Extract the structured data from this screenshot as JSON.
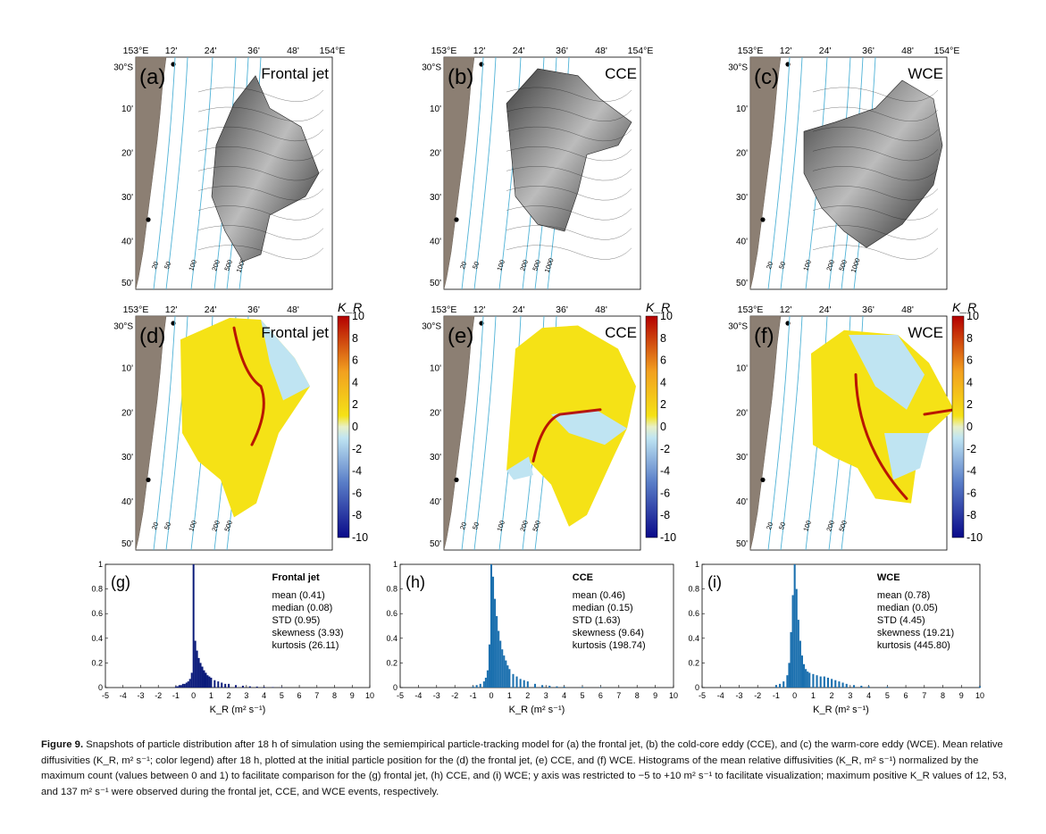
{
  "figure": {
    "number_label": "Figure 9.",
    "caption_text": "Snapshots of particle distribution after 18 h of simulation using the semiempirical particle-tracking model for (a) the frontal jet, (b) the cold-core eddy (CCE), and (c) the warm-core eddy (WCE). Mean relative diffusivities (K_R, m² s⁻¹; color legend) after 18 h, plotted at the initial particle position for the (d) the frontal jet, (e) CCE, and (f) WCE. Histograms of the mean relative diffusivities (K_R, m² s⁻¹) normalized by the maximum count (values between 0 and 1) to facilitate comparison for the (g) frontal jet, (h) CCE, and (i) WCE; y axis was restricted to −5 to +10 m² s⁻¹ to facilitate visualization; maximum positive K_R values of 12, 53, and 137 m² s⁻¹ were observed during the frontal jet, CCE, and WCE events, respectively."
  },
  "maps": {
    "lon_ticks": [
      "153°E",
      "12'",
      "24'",
      "36'",
      "48'",
      "154°E"
    ],
    "lon_ticks_lower": [
      "153°E",
      "12'",
      "24'",
      "36'",
      "48'"
    ],
    "lat_ticks": [
      "30°S",
      "10'",
      "20'",
      "30'",
      "40'",
      "50'"
    ],
    "isobaths": [
      "20",
      "50",
      "100",
      "200",
      "500",
      "1000"
    ],
    "isobaths_lower": [
      "20",
      "50",
      "100",
      "200",
      "500"
    ],
    "colorbar_label": "K_R",
    "colorbar_ticks": [
      "10",
      "8",
      "6",
      "4",
      "2",
      "0",
      "-2",
      "-4",
      "-6",
      "-8",
      "-10"
    ],
    "colors": {
      "land": "#8c7f73",
      "isobath": "#4fb2d6",
      "hot": "#b30000",
      "warm": "#f5e216",
      "cool": "#bfe4f2",
      "cold": "#0a0a8a"
    },
    "top": [
      {
        "letter": "(a)",
        "title": "Frontal jet"
      },
      {
        "letter": "(b)",
        "title": "CCE"
      },
      {
        "letter": "(c)",
        "title": "WCE"
      }
    ],
    "middle": [
      {
        "letter": "(d)",
        "title": "Frontal jet"
      },
      {
        "letter": "(e)",
        "title": "CCE"
      },
      {
        "letter": "(f)",
        "title": "WCE"
      }
    ]
  },
  "chart_data": [
    {
      "type": "bar",
      "panel": "(g)",
      "title": "Frontal jet",
      "xlabel": "K_R (m² s⁻¹)",
      "xlim": [
        -5,
        10
      ],
      "ylim": [
        0,
        1
      ],
      "x_ticks": [
        "-5",
        "-4",
        "-3",
        "-2",
        "-1",
        "0",
        "1",
        "2",
        "3",
        "4",
        "5",
        "6",
        "7",
        "8",
        "9",
        "10"
      ],
      "y_ticks": [
        "0",
        "0.2",
        "0.4",
        "0.6",
        "0.8",
        "1"
      ],
      "stats": [
        "mean (0.41)",
        "median (0.08)",
        "STD (0.95)",
        "skewness (3.93)",
        "kurtosis (26.11)"
      ],
      "bar_color": "#0a1a7a",
      "bins": [
        [
          -1.0,
          0.01
        ],
        [
          -0.9,
          0.01
        ],
        [
          -0.8,
          0.02
        ],
        [
          -0.7,
          0.02
        ],
        [
          -0.6,
          0.03
        ],
        [
          -0.5,
          0.03
        ],
        [
          -0.4,
          0.04
        ],
        [
          -0.3,
          0.05
        ],
        [
          -0.2,
          0.07
        ],
        [
          -0.1,
          0.12
        ],
        [
          0.0,
          1.0
        ],
        [
          0.1,
          0.38
        ],
        [
          0.2,
          0.3
        ],
        [
          0.3,
          0.24
        ],
        [
          0.4,
          0.2
        ],
        [
          0.5,
          0.17
        ],
        [
          0.6,
          0.14
        ],
        [
          0.7,
          0.12
        ],
        [
          0.8,
          0.1
        ],
        [
          0.9,
          0.09
        ],
        [
          1.0,
          0.08
        ],
        [
          1.2,
          0.06
        ],
        [
          1.4,
          0.05
        ],
        [
          1.6,
          0.04
        ],
        [
          1.8,
          0.03
        ],
        [
          2.0,
          0.03
        ],
        [
          2.4,
          0.02
        ],
        [
          2.8,
          0.015
        ],
        [
          3.2,
          0.01
        ],
        [
          3.6,
          0.008
        ],
        [
          4.0,
          0.006
        ],
        [
          4.5,
          0.004
        ],
        [
          5.0,
          0.003
        ]
      ]
    },
    {
      "type": "bar",
      "panel": "(h)",
      "title": "CCE",
      "xlabel": "K_R (m² s⁻¹)",
      "xlim": [
        -5,
        10
      ],
      "ylim": [
        0,
        1
      ],
      "x_ticks": [
        "-5",
        "-4",
        "-3",
        "-2",
        "-1",
        "0",
        "1",
        "2",
        "3",
        "4",
        "5",
        "6",
        "7",
        "8",
        "9",
        "10"
      ],
      "y_ticks": [
        "0",
        "0.2",
        "0.4",
        "0.6",
        "0.8",
        "1"
      ],
      "stats": [
        "mean (0.46)",
        "median (0.15)",
        "STD (1.63)",
        "skewness (9.64)",
        "kurtosis (198.74)"
      ],
      "bar_color": "#1a6fae",
      "bins": [
        [
          -1.0,
          0.01
        ],
        [
          -0.8,
          0.02
        ],
        [
          -0.6,
          0.03
        ],
        [
          -0.4,
          0.05
        ],
        [
          -0.3,
          0.08
        ],
        [
          -0.2,
          0.14
        ],
        [
          -0.1,
          0.35
        ],
        [
          0.0,
          1.0
        ],
        [
          0.1,
          0.9
        ],
        [
          0.2,
          0.72
        ],
        [
          0.3,
          0.58
        ],
        [
          0.4,
          0.46
        ],
        [
          0.5,
          0.38
        ],
        [
          0.6,
          0.31
        ],
        [
          0.7,
          0.26
        ],
        [
          0.8,
          0.22
        ],
        [
          0.9,
          0.18
        ],
        [
          1.0,
          0.15
        ],
        [
          1.2,
          0.11
        ],
        [
          1.4,
          0.09
        ],
        [
          1.6,
          0.07
        ],
        [
          1.8,
          0.06
        ],
        [
          2.0,
          0.05
        ],
        [
          2.4,
          0.03
        ],
        [
          2.8,
          0.02
        ],
        [
          3.2,
          0.015
        ],
        [
          3.6,
          0.01
        ],
        [
          4.0,
          0.008
        ],
        [
          5.0,
          0.005
        ],
        [
          6.0,
          0.003
        ]
      ]
    },
    {
      "type": "bar",
      "panel": "(i)",
      "title": "WCE",
      "xlabel": "K_R (m² s⁻¹)",
      "xlim": [
        -5,
        10
      ],
      "ylim": [
        0,
        1
      ],
      "x_ticks": [
        "-5",
        "-4",
        "-3",
        "-2",
        "-1",
        "0",
        "1",
        "2",
        "3",
        "4",
        "5",
        "6",
        "7",
        "8",
        "9",
        "10"
      ],
      "y_ticks": [
        "0",
        "0.2",
        "0.4",
        "0.6",
        "0.8",
        "1"
      ],
      "stats": [
        "mean (0.78)",
        "median (0.05)",
        "STD (4.45)",
        "skewness (19.21)",
        "kurtosis (445.80)"
      ],
      "bar_color": "#1a6fae",
      "bins": [
        [
          -1.0,
          0.02
        ],
        [
          -0.8,
          0.03
        ],
        [
          -0.6,
          0.05
        ],
        [
          -0.4,
          0.1
        ],
        [
          -0.3,
          0.2
        ],
        [
          -0.2,
          0.45
        ],
        [
          -0.1,
          0.75
        ],
        [
          0.0,
          1.0
        ],
        [
          0.1,
          0.8
        ],
        [
          0.2,
          0.55
        ],
        [
          0.3,
          0.38
        ],
        [
          0.4,
          0.26
        ],
        [
          0.5,
          0.19
        ],
        [
          0.6,
          0.15
        ],
        [
          0.7,
          0.13
        ],
        [
          0.8,
          0.12
        ],
        [
          1.0,
          0.11
        ],
        [
          1.2,
          0.1
        ],
        [
          1.4,
          0.09
        ],
        [
          1.6,
          0.09
        ],
        [
          1.8,
          0.08
        ],
        [
          2.0,
          0.07
        ],
        [
          2.2,
          0.06
        ],
        [
          2.4,
          0.05
        ],
        [
          2.6,
          0.04
        ],
        [
          2.8,
          0.03
        ],
        [
          3.2,
          0.02
        ],
        [
          3.6,
          0.015
        ],
        [
          4.0,
          0.01
        ],
        [
          5.0,
          0.006
        ],
        [
          10.0,
          0.01
        ]
      ]
    }
  ]
}
